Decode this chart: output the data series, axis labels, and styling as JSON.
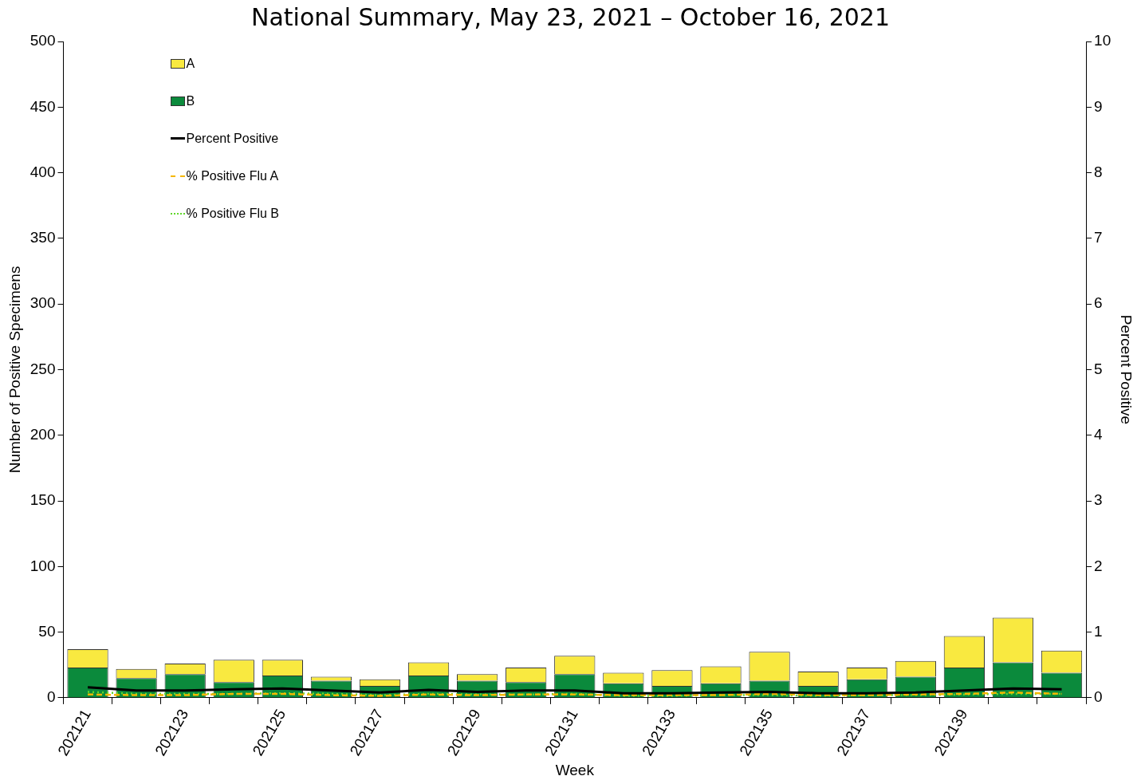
{
  "chart_data": {
    "type": "bar",
    "title": "National Summary, May 23, 2021 – October 16, 2021",
    "xlabel": "Week",
    "ylabel": "Number of Positive Specimens",
    "y2label": "Percent Positive",
    "categories": [
      "202121",
      null,
      "202123",
      null,
      "202125",
      null,
      "202127",
      null,
      "202129",
      null,
      "202131",
      null,
      "202133",
      null,
      "202135",
      null,
      "202137",
      null,
      "202139",
      null,
      null
    ],
    "stacked": true,
    "grid": false,
    "legend": "top left",
    "marker": "none",
    "ylim": [
      0,
      500
    ],
    "yticks": [
      0,
      50,
      100,
      150,
      200,
      250,
      300,
      350,
      400,
      450,
      500
    ],
    "y2lim": [
      0,
      10
    ],
    "y2ticks": [
      0,
      1,
      2,
      3,
      4,
      5,
      6,
      7,
      8,
      9,
      10
    ],
    "series": [
      {
        "name": "B",
        "color": "#0b8a3c",
        "values": [
          23,
          15,
          18,
          12,
          17,
          13,
          9,
          17,
          13,
          12,
          18,
          11,
          9,
          11,
          13,
          9,
          14,
          16,
          23,
          27,
          19
        ]
      },
      {
        "name": "A",
        "color": "#f9e940",
        "values": [
          14,
          7,
          8,
          17,
          12,
          3,
          5,
          10,
          5,
          11,
          14,
          8,
          12,
          13,
          22,
          11,
          9,
          12,
          24,
          34,
          17
        ]
      },
      {
        "name": "Percent Positive",
        "type": "line",
        "axis": "y2",
        "color": "#000000",
        "line_style": "solid",
        "values": [
          0.16,
          0.11,
          0.11,
          0.13,
          0.14,
          0.11,
          0.08,
          0.12,
          0.09,
          0.11,
          0.11,
          0.07,
          0.07,
          0.08,
          0.09,
          0.07,
          0.07,
          0.08,
          0.11,
          0.14,
          0.13
        ]
      },
      {
        "name": "% Positive Flu A",
        "type": "line",
        "axis": "y2",
        "color": "#f5b700",
        "line_style": "dashed",
        "values": [
          0.05,
          0.04,
          0.04,
          0.06,
          0.06,
          0.04,
          0.03,
          0.05,
          0.04,
          0.05,
          0.05,
          0.04,
          0.04,
          0.04,
          0.06,
          0.04,
          0.04,
          0.05,
          0.06,
          0.08,
          0.06
        ]
      },
      {
        "name": "% Positive Flu B",
        "type": "line",
        "axis": "y2",
        "color": "#5fd82a",
        "line_style": "dotted",
        "values": [
          0.09,
          0.06,
          0.06,
          0.06,
          0.07,
          0.06,
          0.04,
          0.06,
          0.05,
          0.05,
          0.06,
          0.03,
          0.03,
          0.04,
          0.04,
          0.03,
          0.04,
          0.04,
          0.05,
          0.06,
          0.06
        ]
      }
    ]
  }
}
